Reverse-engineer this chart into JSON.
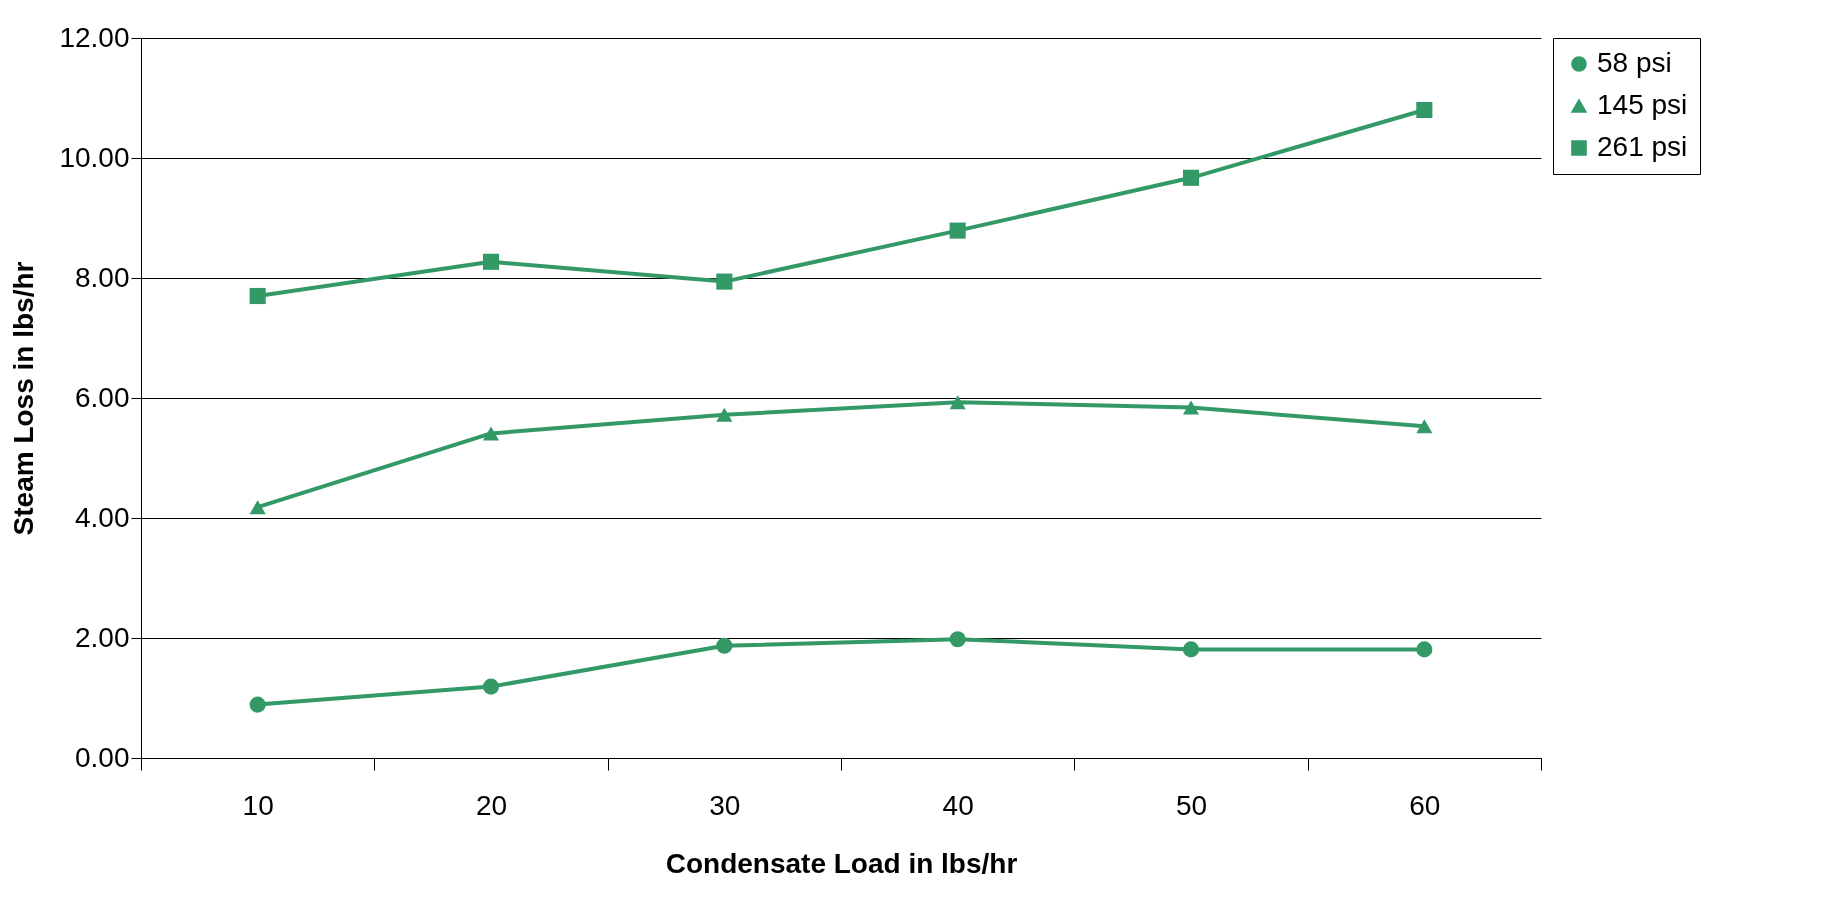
{
  "chart_data": {
    "type": "line",
    "xlabel": "Condensate Load in lbs/hr",
    "ylabel": "Steam Loss in lbs/hr",
    "categories": [
      "10",
      "20",
      "30",
      "40",
      "50",
      "60"
    ],
    "series": [
      {
        "name": "58 psi",
        "color": "#339966",
        "marker": "circle",
        "values": [
          0.89,
          1.19,
          1.87,
          1.98,
          1.81,
          1.81
        ]
      },
      {
        "name": "145 psi",
        "color": "#339966",
        "marker": "triangle",
        "values": [
          4.18,
          5.41,
          5.72,
          5.93,
          5.84,
          5.53
        ]
      },
      {
        "name": "261 psi",
        "color": "#339966",
        "marker": "square",
        "values": [
          7.7,
          8.27,
          7.94,
          8.79,
          9.67,
          10.8
        ]
      }
    ],
    "ylim": [
      0,
      12
    ],
    "yticks": [
      {
        "value": 0,
        "label": "0.00"
      },
      {
        "value": 2,
        "label": "2.00"
      },
      {
        "value": 4,
        "label": "4.00"
      },
      {
        "value": 6,
        "label": "6.00"
      },
      {
        "value": 8,
        "label": "8.00"
      },
      {
        "value": 10,
        "label": "10.00"
      },
      {
        "value": 12,
        "label": "12.00"
      }
    ],
    "grid": "y",
    "legend": "right",
    "line_style": "solid"
  }
}
